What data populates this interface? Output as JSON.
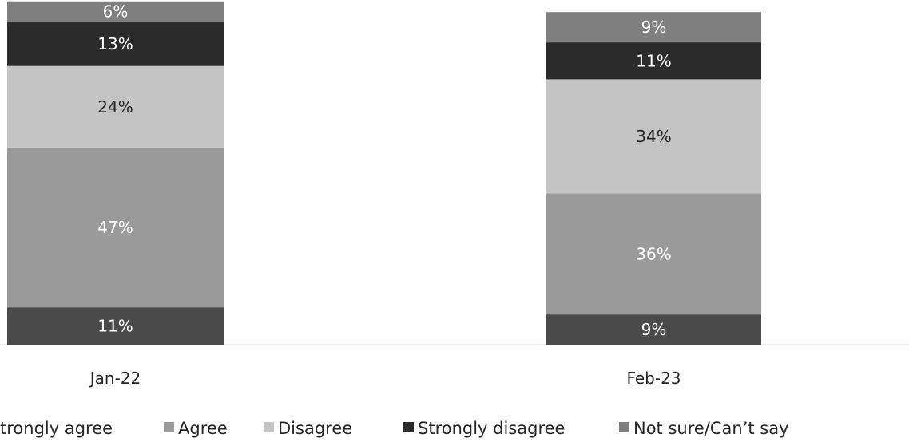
{
  "chart_data": {
    "type": "bar",
    "stacked": true,
    "categories": [
      "Jan-22",
      "Feb-23"
    ],
    "series": [
      {
        "name": "Strongly agree",
        "values": [
          11,
          9
        ],
        "labels": [
          "11%",
          "9%"
        ],
        "color": "#4a4a4a",
        "label_color": "#ffffff"
      },
      {
        "name": "Agree",
        "values": [
          47,
          36
        ],
        "labels": [
          "47%",
          "36%"
        ],
        "color": "#9a9a9a",
        "label_color": "#ffffff"
      },
      {
        "name": "Disagree",
        "values": [
          24,
          34
        ],
        "labels": [
          "24%",
          "34%"
        ],
        "color": "#c4c4c4",
        "label_color": "#262626"
      },
      {
        "name": "Strongly disagree",
        "values": [
          13,
          11
        ],
        "labels": [
          "13%",
          "11%"
        ],
        "color": "#2b2b2b",
        "label_color": "#ffffff"
      },
      {
        "name": "Not sure/Can’t say",
        "values": [
          6,
          9
        ],
        "labels": [
          "6%",
          "9%"
        ],
        "color": "#7f7f7f",
        "label_color": "#ffffff"
      }
    ],
    "ylim": [
      0,
      100
    ],
    "grid": false,
    "legend_position": "bottom",
    "legend_visible_text": [
      "trongly agree",
      "Agree",
      "Disagree",
      "Strongly disagree",
      "Not sure/Can’t say"
    ]
  }
}
